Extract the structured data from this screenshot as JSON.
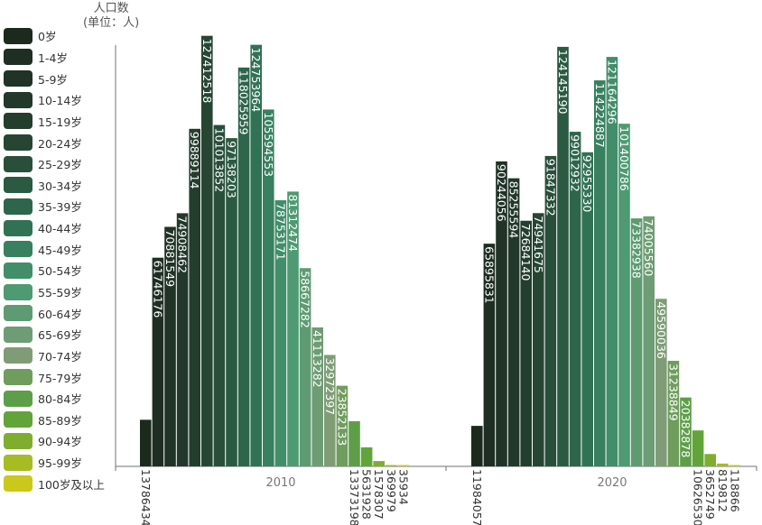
{
  "chart_data": {
    "type": "bar",
    "ylabel_line1": "人口数",
    "ylabel_line2": "(单位：人)",
    "categories": [
      "2010",
      "2020"
    ],
    "ylim": [
      0,
      130000000
    ],
    "legend_position": "left",
    "grid": false,
    "series": [
      {
        "name": "0岁",
        "color": "#1c2a1e",
        "values": [
          13786434,
          11984057
        ]
      },
      {
        "name": "1-4岁",
        "color": "#1e2e22",
        "values": [
          61746176,
          65895831
        ]
      },
      {
        "name": "5-9岁",
        "color": "#203326",
        "values": [
          70881549,
          90244056
        ]
      },
      {
        "name": "10-14岁",
        "color": "#22382a",
        "values": [
          74908462,
          85255594
        ]
      },
      {
        "name": "15-19岁",
        "color": "#243e2e",
        "values": [
          99889114,
          72684140
        ]
      },
      {
        "name": "20-24岁",
        "color": "#264633",
        "values": [
          127412518,
          74941675
        ]
      },
      {
        "name": "25-29岁",
        "color": "#294f3a",
        "values": [
          101013852,
          91847332
        ]
      },
      {
        "name": "30-34岁",
        "color": "#2b5a42",
        "values": [
          97138203,
          124145190
        ]
      },
      {
        "name": "35-39岁",
        "color": "#2e664b",
        "values": [
          118025959,
          99012932
        ]
      },
      {
        "name": "40-44岁",
        "color": "#317255",
        "values": [
          124753964,
          92955330
        ]
      },
      {
        "name": "45-49岁",
        "color": "#38805f",
        "values": [
          105594553,
          114224887
        ]
      },
      {
        "name": "50-54岁",
        "color": "#428d6a",
        "values": [
          78753171,
          121164296
        ]
      },
      {
        "name": "55-59岁",
        "color": "#4e9a72",
        "values": [
          81312474,
          101400786
        ]
      },
      {
        "name": "60-64岁",
        "color": "#5e9b72",
        "values": [
          58667282,
          73382938
        ]
      },
      {
        "name": "65-69岁",
        "color": "#6e9c74",
        "values": [
          41113282,
          74005560
        ]
      },
      {
        "name": "70-74岁",
        "color": "#7f9c77",
        "values": [
          32972397,
          49590036
        ]
      },
      {
        "name": "75-79岁",
        "color": "#6f9d5d",
        "values": [
          23852133,
          31238849
        ]
      },
      {
        "name": "80-84岁",
        "color": "#5e9e49",
        "values": [
          13373198,
          20382878
        ]
      },
      {
        "name": "85-89岁",
        "color": "#61a43a",
        "values": [
          5631928,
          10626530
        ]
      },
      {
        "name": "90-94岁",
        "color": "#7fae2f",
        "values": [
          1578307,
          3652749
        ]
      },
      {
        "name": "95-99岁",
        "color": "#a5bc24",
        "values": [
          369979,
          819812
        ]
      },
      {
        "name": "100岁及以上",
        "color": "#cbc81c",
        "values": [
          35934,
          118866
        ]
      }
    ]
  }
}
